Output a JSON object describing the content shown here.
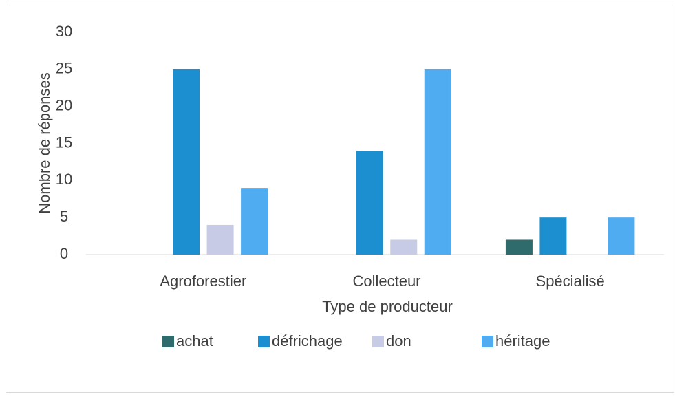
{
  "chart_data": {
    "type": "bar",
    "x_label": "Type de producteur",
    "y_label": "Nombre de réponses",
    "categories": [
      "Agroforestier",
      "Collecteur",
      "Spécialisé"
    ],
    "series": [
      {
        "name": "achat",
        "color": "#2f6a6c",
        "values": [
          0,
          0,
          2
        ]
      },
      {
        "name": "défrichage",
        "color": "#1b8fcf",
        "values": [
          25,
          14,
          5
        ]
      },
      {
        "name": "don",
        "color": "#c8cbe6",
        "values": [
          4,
          2,
          0
        ]
      },
      {
        "name": "héritage",
        "color": "#50acf1",
        "values": [
          9,
          25,
          5
        ]
      }
    ],
    "ylim": [
      0,
      30
    ],
    "yticks": [
      0,
      5,
      10,
      15,
      20,
      25,
      30
    ],
    "grid": false,
    "legend": "bottom"
  }
}
